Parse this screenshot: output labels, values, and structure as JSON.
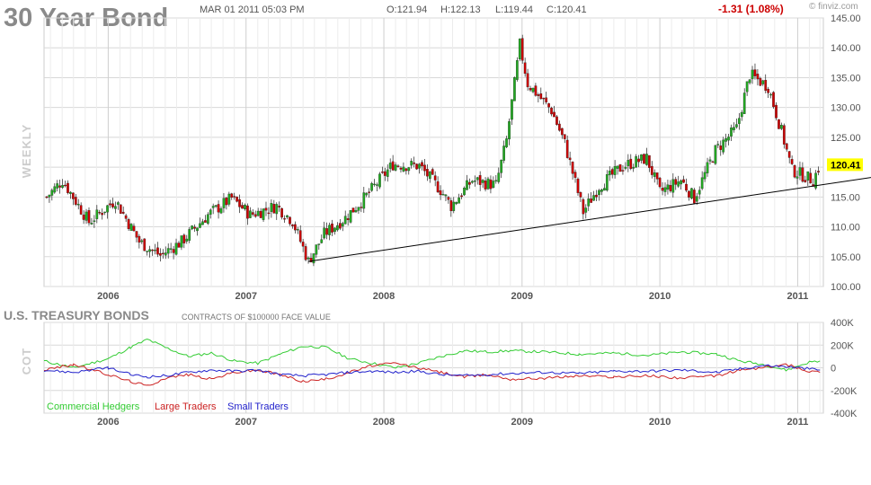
{
  "header": {
    "title": "30 Year Bond",
    "timestamp": "MAR 01 2011 05:03 PM",
    "open": "O:121.94",
    "high": "H:122.13",
    "low": "L:119.44",
    "close": "C:120.41",
    "change": "-1.31 (1.08%)",
    "brand": "© finviz.com"
  },
  "colors": {
    "up": "#22aa22",
    "down": "#cc0000",
    "change": "#cc0000",
    "trendline": "#000000",
    "grid": "#d8d8d8",
    "last_price_bg": "#ffff00",
    "commercial": "#33cc33",
    "large": "#cc2222",
    "small": "#2222cc"
  },
  "chart_data": [
    {
      "type": "candlestick",
      "title": "30 Year Bond",
      "ylabel": "WEEKLY",
      "ylim": [
        100,
        145
      ],
      "yticks": [
        "145.00",
        "140.00",
        "135.00",
        "130.00",
        "125.00",
        "120.00",
        "115.00",
        "110.00",
        "105.00",
        "100.00"
      ],
      "xticks": [
        "2006",
        "2007",
        "2008",
        "2009",
        "2010",
        "2011"
      ],
      "last_price": "120.41",
      "grid": true,
      "keypoints": [
        {
          "date": "2005-07-22",
          "close": 115.0
        },
        {
          "date": "2005-09-02",
          "close": 117.8
        },
        {
          "date": "2005-11-11",
          "close": 110.8
        },
        {
          "date": "2006-01-20",
          "close": 114.5
        },
        {
          "date": "2006-03-24",
          "close": 107.5
        },
        {
          "date": "2006-05-19",
          "close": 105.2
        },
        {
          "date": "2006-07-14",
          "close": 107.5
        },
        {
          "date": "2006-09-22",
          "close": 112.0
        },
        {
          "date": "2006-11-24",
          "close": 114.8
        },
        {
          "date": "2007-01-12",
          "close": 112.0
        },
        {
          "date": "2007-03-23",
          "close": 113.5
        },
        {
          "date": "2007-05-04",
          "close": 111.0
        },
        {
          "date": "2007-06-15",
          "close": 104.2
        },
        {
          "date": "2007-07-27",
          "close": 108.8
        },
        {
          "date": "2007-09-21",
          "close": 111.5
        },
        {
          "date": "2007-11-16",
          "close": 115.2
        },
        {
          "date": "2008-01-25",
          "close": 120.5
        },
        {
          "date": "2008-04-04",
          "close": 120.2
        },
        {
          "date": "2008-05-30",
          "close": 116.2
        },
        {
          "date": "2008-06-27",
          "close": 113.5
        },
        {
          "date": "2008-08-22",
          "close": 117.8
        },
        {
          "date": "2008-10-24",
          "close": 117.0
        },
        {
          "date": "2008-11-21",
          "close": 124.5
        },
        {
          "date": "2008-12-12",
          "close": 134.0
        },
        {
          "date": "2008-12-26",
          "close": 140.5
        },
        {
          "date": "2009-01-16",
          "close": 134.0
        },
        {
          "date": "2009-03-20",
          "close": 129.5
        },
        {
          "date": "2009-04-24",
          "close": 124.0
        },
        {
          "date": "2009-06-12",
          "close": 112.5
        },
        {
          "date": "2009-07-24",
          "close": 116.8
        },
        {
          "date": "2009-09-25",
          "close": 120.2
        },
        {
          "date": "2009-11-27",
          "close": 121.5
        },
        {
          "date": "2010-01-01",
          "close": 115.8
        },
        {
          "date": "2010-02-26",
          "close": 117.8
        },
        {
          "date": "2010-04-02",
          "close": 114.8
        },
        {
          "date": "2010-05-28",
          "close": 122.8
        },
        {
          "date": "2010-07-23",
          "close": 126.5
        },
        {
          "date": "2010-08-27",
          "close": 135.5
        },
        {
          "date": "2010-10-15",
          "close": 133.5
        },
        {
          "date": "2010-11-19",
          "close": 126.0
        },
        {
          "date": "2010-12-17",
          "close": 119.5
        },
        {
          "date": "2011-02-11",
          "close": 117.8
        },
        {
          "date": "2011-03-01",
          "close": 120.41
        }
      ],
      "trendline": [
        {
          "date": "2007-06-15",
          "value": 104.2
        },
        {
          "date": "2011-03-01",
          "value": 117.0
        },
        {
          "date": "2011-06-01",
          "value": 118.3
        }
      ]
    },
    {
      "type": "line",
      "title": "U.S. TREASURY BONDS",
      "subtitle": "CONTRACTS OF $100000 FACE VALUE",
      "ylabel": "COT",
      "ylim": [
        -400000,
        400000
      ],
      "yticks": [
        "400K",
        "200K",
        "0",
        "-200K",
        "-400K"
      ],
      "xticks": [
        "2006",
        "2007",
        "2008",
        "2009",
        "2010",
        "2011"
      ],
      "grid": true,
      "legend_position": "bottom-left",
      "series": [
        {
          "name": "Commercial Hedgers",
          "color": "#33cc33",
          "points": [
            [
              "2005-07-15",
              60000
            ],
            [
              "2005-10-01",
              0
            ],
            [
              "2006-01-01",
              80000
            ],
            [
              "2006-03-01",
              180000
            ],
            [
              "2006-04-15",
              250000
            ],
            [
              "2006-06-01",
              180000
            ],
            [
              "2006-08-01",
              100000
            ],
            [
              "2006-10-01",
              130000
            ],
            [
              "2006-12-01",
              60000
            ],
            [
              "2007-02-01",
              40000
            ],
            [
              "2007-04-01",
              120000
            ],
            [
              "2007-06-01",
              190000
            ],
            [
              "2007-08-01",
              180000
            ],
            [
              "2007-10-01",
              80000
            ],
            [
              "2007-12-01",
              40000
            ],
            [
              "2008-02-01",
              0
            ],
            [
              "2008-04-01",
              40000
            ],
            [
              "2008-06-01",
              100000
            ],
            [
              "2008-08-01",
              150000
            ],
            [
              "2008-10-01",
              140000
            ],
            [
              "2008-12-01",
              150000
            ],
            [
              "2009-03-01",
              140000
            ],
            [
              "2009-06-01",
              120000
            ],
            [
              "2009-09-01",
              130000
            ],
            [
              "2009-12-01",
              110000
            ],
            [
              "2010-03-01",
              140000
            ],
            [
              "2010-06-01",
              120000
            ],
            [
              "2010-08-01",
              60000
            ],
            [
              "2010-10-01",
              30000
            ],
            [
              "2010-12-01",
              -20000
            ],
            [
              "2011-02-01",
              50000
            ],
            [
              "2011-03-01",
              60000
            ]
          ]
        },
        {
          "name": "Large Traders",
          "color": "#cc2222",
          "points": [
            [
              "2005-07-15",
              -20000
            ],
            [
              "2005-10-01",
              30000
            ],
            [
              "2006-01-01",
              -60000
            ],
            [
              "2006-03-01",
              -120000
            ],
            [
              "2006-04-15",
              -160000
            ],
            [
              "2006-06-01",
              -90000
            ],
            [
              "2006-08-01",
              -60000
            ],
            [
              "2006-10-01",
              -100000
            ],
            [
              "2006-12-01",
              -40000
            ],
            [
              "2007-02-01",
              -20000
            ],
            [
              "2007-04-01",
              -60000
            ],
            [
              "2007-06-01",
              -120000
            ],
            [
              "2007-08-01",
              -100000
            ],
            [
              "2007-10-01",
              -40000
            ],
            [
              "2007-12-01",
              20000
            ],
            [
              "2008-02-01",
              40000
            ],
            [
              "2008-04-01",
              0
            ],
            [
              "2008-06-01",
              -40000
            ],
            [
              "2008-08-01",
              -80000
            ],
            [
              "2008-10-01",
              -60000
            ],
            [
              "2008-12-01",
              -100000
            ],
            [
              "2009-03-01",
              -90000
            ],
            [
              "2009-06-01",
              -70000
            ],
            [
              "2009-09-01",
              -80000
            ],
            [
              "2009-12-01",
              -70000
            ],
            [
              "2010-03-01",
              -90000
            ],
            [
              "2010-06-01",
              -70000
            ],
            [
              "2010-08-01",
              -20000
            ],
            [
              "2010-10-01",
              0
            ],
            [
              "2010-12-01",
              30000
            ],
            [
              "2011-02-01",
              -30000
            ],
            [
              "2011-03-01",
              -40000
            ]
          ]
        },
        {
          "name": "Small Traders",
          "color": "#2222cc",
          "points": [
            [
              "2005-07-15",
              -20000
            ],
            [
              "2005-10-01",
              -40000
            ],
            [
              "2006-01-01",
              0
            ],
            [
              "2006-03-01",
              -60000
            ],
            [
              "2006-04-15",
              -80000
            ],
            [
              "2006-06-01",
              -70000
            ],
            [
              "2006-08-01",
              -40000
            ],
            [
              "2006-10-01",
              -20000
            ],
            [
              "2006-12-01",
              -30000
            ],
            [
              "2007-02-01",
              -20000
            ],
            [
              "2007-04-01",
              -60000
            ],
            [
              "2007-06-01",
              -70000
            ],
            [
              "2007-08-01",
              -60000
            ],
            [
              "2007-10-01",
              -40000
            ],
            [
              "2007-12-01",
              -30000
            ],
            [
              "2008-02-01",
              -40000
            ],
            [
              "2008-04-01",
              -30000
            ],
            [
              "2008-06-01",
              -60000
            ],
            [
              "2008-08-01",
              -70000
            ],
            [
              "2008-10-01",
              -60000
            ],
            [
              "2008-12-01",
              -50000
            ],
            [
              "2009-03-01",
              -40000
            ],
            [
              "2009-06-01",
              -50000
            ],
            [
              "2009-09-01",
              -30000
            ],
            [
              "2009-12-01",
              -30000
            ],
            [
              "2010-03-01",
              -20000
            ],
            [
              "2010-06-01",
              -40000
            ],
            [
              "2010-08-01",
              -10000
            ],
            [
              "2010-10-01",
              20000
            ],
            [
              "2010-12-01",
              10000
            ],
            [
              "2011-02-01",
              -10000
            ],
            [
              "2011-03-01",
              -20000
            ]
          ]
        }
      ]
    }
  ]
}
